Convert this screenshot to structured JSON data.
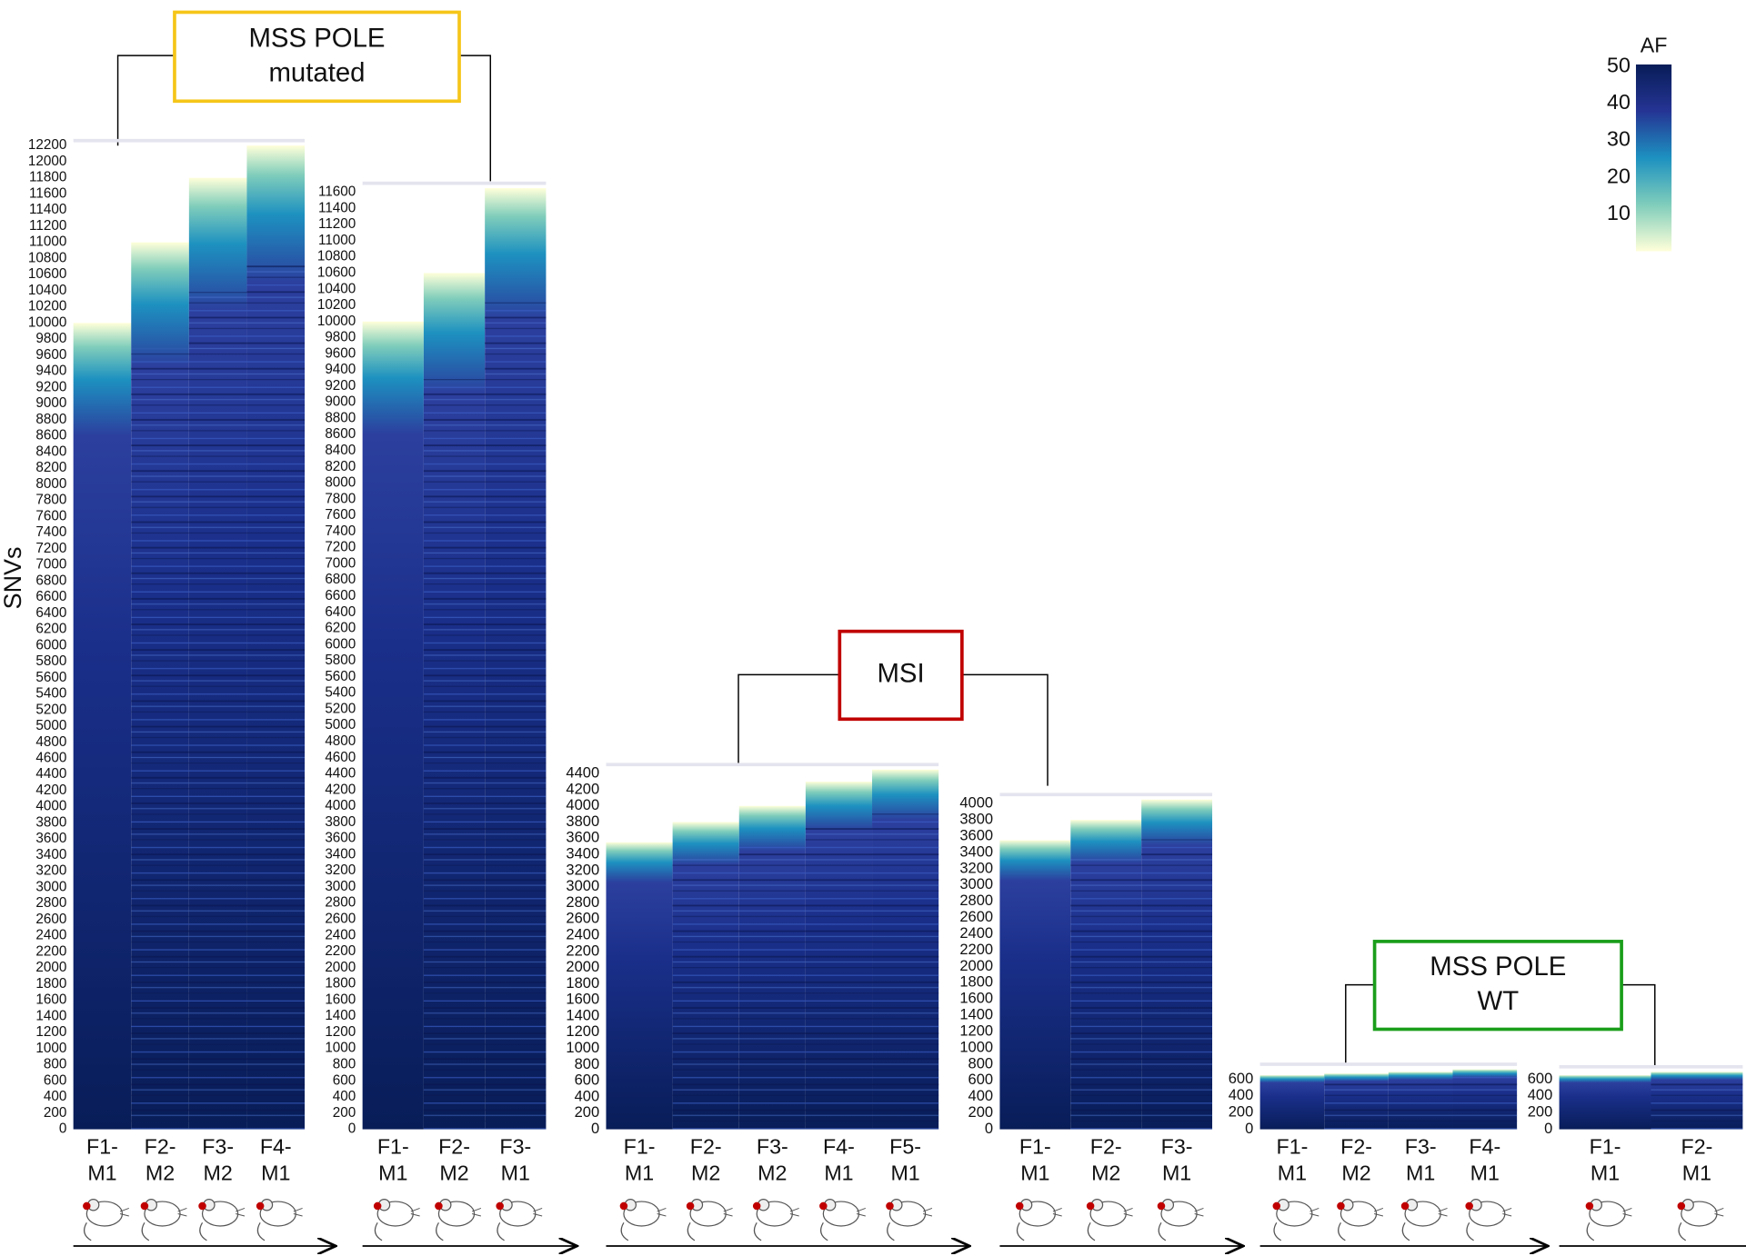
{
  "chart_data": [
    {
      "type": "heatmap",
      "y_label": "SNVs",
      "categories": [
        "F1-\nM1",
        "F2-\nM2",
        "F3-\nM2",
        "F4-\nM1"
      ],
      "values": [
        10000,
        11000,
        11800,
        12200
      ],
      "ylim": [
        0,
        12200
      ],
      "yticks": [
        0,
        200,
        400,
        600,
        800,
        1000,
        1200,
        1400,
        1600,
        1800,
        2000,
        2200,
        2400,
        2600,
        2800,
        3000,
        3200,
        3400,
        3600,
        3800,
        4000,
        4200,
        4400,
        4600,
        4800,
        5000,
        5200,
        5400,
        5600,
        5800,
        6000,
        6200,
        6400,
        6600,
        6800,
        7000,
        7200,
        7400,
        7600,
        7800,
        8000,
        8200,
        8400,
        8600,
        8800,
        9000,
        9200,
        9400,
        9600,
        9800,
        10000,
        10200,
        10400,
        10600,
        10800,
        11000,
        11200,
        11400,
        11600,
        11800,
        12000,
        12200
      ]
    },
    {
      "type": "heatmap",
      "categories": [
        "F1-\nM1",
        "F2-\nM2",
        "F3-\nM1"
      ],
      "values": [
        10000,
        10600,
        11650
      ],
      "ylim": [
        0,
        11600
      ],
      "yticks": [
        0,
        200,
        400,
        600,
        800,
        1000,
        1200,
        1400,
        1600,
        1800,
        2000,
        2200,
        2400,
        2600,
        2800,
        3000,
        3200,
        3400,
        3600,
        3800,
        4000,
        4200,
        4400,
        4600,
        4800,
        5000,
        5200,
        5400,
        5600,
        5800,
        6000,
        6200,
        6400,
        6600,
        6800,
        7000,
        7200,
        7400,
        7600,
        7800,
        8000,
        8200,
        8400,
        8600,
        8800,
        9000,
        9200,
        9400,
        9600,
        9800,
        10000,
        10200,
        10400,
        10600,
        10800,
        11000,
        11200,
        11400,
        11600
      ]
    },
    {
      "type": "heatmap",
      "categories": [
        "F1-\nM1",
        "F2-\nM2",
        "F3-\nM2",
        "F4-\nM1",
        "F5-\nM1"
      ],
      "values": [
        3550,
        3800,
        4000,
        4300,
        4450
      ],
      "ylim": [
        0,
        4400
      ],
      "yticks": [
        0,
        200,
        400,
        600,
        800,
        1000,
        1200,
        1400,
        1600,
        1800,
        2000,
        2200,
        2400,
        2600,
        2800,
        3000,
        3200,
        3400,
        3600,
        3800,
        4000,
        4200,
        4400
      ]
    },
    {
      "type": "heatmap",
      "categories": [
        "F1-\nM1",
        "F2-\nM2",
        "F3-\nM1"
      ],
      "values": [
        3550,
        3800,
        4050
      ],
      "ylim": [
        0,
        4000
      ],
      "yticks": [
        0,
        200,
        400,
        600,
        800,
        1000,
        1200,
        1400,
        1600,
        1800,
        2000,
        2200,
        2400,
        2600,
        2800,
        3000,
        3200,
        3400,
        3600,
        3800,
        4000
      ]
    },
    {
      "type": "heatmap",
      "categories": [
        "F1-\nM1",
        "F2-\nM2",
        "F3-\nM1",
        "F4-\nM1"
      ],
      "values": [
        650,
        670,
        690,
        720
      ],
      "ylim": [
        0,
        600
      ],
      "yticks": [
        0,
        200,
        400,
        600
      ]
    },
    {
      "type": "heatmap",
      "categories": [
        "F1-\nM1",
        "F2-\nM1"
      ],
      "values": [
        650,
        690
      ],
      "ylim": [
        0,
        600
      ],
      "yticks": [
        0,
        200,
        400,
        600
      ]
    }
  ],
  "groups": [
    {
      "label": "MSS POLE\nmutated",
      "color": "#f5c518"
    },
    {
      "label": "MSI",
      "color": "#c00000"
    },
    {
      "label": "MSS POLE\nWT",
      "color": "#1a9e1a"
    }
  ],
  "colorbar": {
    "title": "AF",
    "lim": [
      0,
      50
    ],
    "ticks": [
      10,
      20,
      30,
      40,
      50
    ],
    "colors": [
      "#ffffd9",
      "#7fcdbb",
      "#1d91c0",
      "#253494",
      "#081d58"
    ]
  }
}
